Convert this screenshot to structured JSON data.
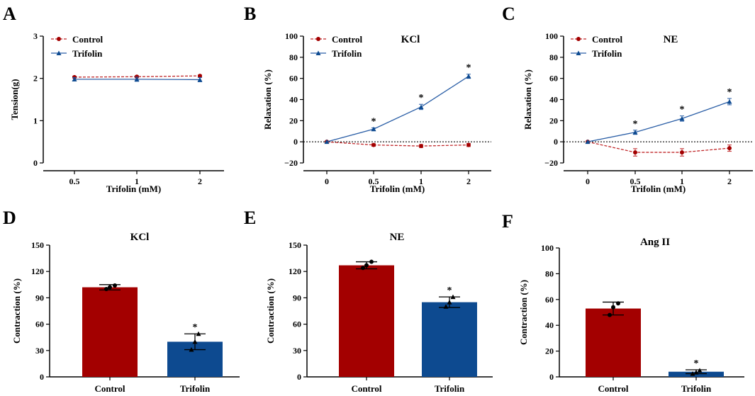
{
  "colors": {
    "control": "#a30000",
    "trifolin": "#0d4a90",
    "control_line": "#c0282a",
    "trifolin_line": "#2a5ea6"
  },
  "chart_data": [
    {
      "panel": "A",
      "type": "line",
      "title": "",
      "xlabel": "Trifolin (mM)",
      "ylabel": "Tension(g)",
      "categories": [
        "0.5",
        "1",
        "2"
      ],
      "ylim": [
        0,
        3
      ],
      "yticks": [
        "0",
        "1",
        "2",
        "3"
      ],
      "legend": [
        "Control",
        "Trifolin"
      ],
      "series": [
        {
          "name": "Control",
          "values": [
            2.03,
            2.04,
            2.06
          ],
          "errors": [
            0.02,
            0.02,
            0.02
          ],
          "stars": [
            "",
            "",
            ""
          ]
        },
        {
          "name": "Trifolin",
          "values": [
            1.98,
            1.98,
            1.97
          ],
          "errors": [
            0.04,
            0.05,
            0.05
          ],
          "stars": [
            "",
            "",
            ""
          ]
        }
      ],
      "zero_line": false
    },
    {
      "panel": "B",
      "type": "line",
      "title": "KCl",
      "xlabel": "Trifolin (mM)",
      "ylabel": "Relaxation (%)",
      "categories": [
        "0",
        "0.5",
        "1",
        "2"
      ],
      "ylim": [
        -20,
        100
      ],
      "yticks": [
        "−20",
        "0",
        "20",
        "40",
        "60",
        "80",
        "100"
      ],
      "legend": [
        "Control",
        "Trifolin"
      ],
      "series": [
        {
          "name": "Control",
          "values": [
            0,
            -3,
            -4,
            -3
          ],
          "errors": [
            0,
            1.2,
            1.5,
            1.5
          ],
          "stars": [
            "",
            "",
            "",
            ""
          ]
        },
        {
          "name": "Trifolin",
          "values": [
            0,
            12,
            33,
            62
          ],
          "errors": [
            0,
            1.2,
            2.5,
            2
          ],
          "stars": [
            "",
            "*",
            "*",
            "*"
          ]
        }
      ],
      "zero_line": true
    },
    {
      "panel": "C",
      "type": "line",
      "title": "NE",
      "xlabel": "Trifolin (mM)",
      "ylabel": "Relaxation (%)",
      "categories": [
        "0",
        "0.5",
        "1",
        "2"
      ],
      "ylim": [
        -20,
        100
      ],
      "yticks": [
        "−20",
        "0",
        "20",
        "40",
        "60",
        "80",
        "100"
      ],
      "legend": [
        "Control",
        "Trifolin"
      ],
      "series": [
        {
          "name": "Control",
          "values": [
            0,
            -10,
            -10,
            -6
          ],
          "errors": [
            0,
            3.5,
            3.5,
            3
          ],
          "stars": [
            "",
            "",
            "",
            ""
          ]
        },
        {
          "name": "Trifolin",
          "values": [
            0,
            9,
            22,
            38
          ],
          "errors": [
            0,
            2,
            2.5,
            3
          ],
          "stars": [
            "",
            "*",
            "*",
            "*"
          ]
        }
      ],
      "zero_line": true
    },
    {
      "panel": "D",
      "type": "bar",
      "title": "KCl",
      "xlabel": "",
      "ylabel": "Contraction (%)",
      "categories": [
        "Control",
        "Trifolin"
      ],
      "values": [
        102,
        40
      ],
      "errors": [
        3,
        9
      ],
      "points": [
        [
          100,
          102,
          104
        ],
        [
          31,
          40,
          49
        ]
      ],
      "stars": [
        "",
        "*"
      ],
      "ylim": [
        0,
        150
      ],
      "yticks": [
        "0",
        "30",
        "60",
        "90",
        "120",
        "150"
      ]
    },
    {
      "panel": "E",
      "type": "bar",
      "title": "NE",
      "xlabel": "",
      "ylabel": "Contraction (%)",
      "categories": [
        "Control",
        "Trifolin"
      ],
      "values": [
        127,
        85
      ],
      "errors": [
        4,
        6
      ],
      "points": [
        [
          124,
          127,
          131
        ],
        [
          80,
          85,
          91
        ]
      ],
      "stars": [
        "",
        "*"
      ],
      "ylim": [
        0,
        150
      ],
      "yticks": [
        "0",
        "30",
        "60",
        "90",
        "120",
        "150"
      ]
    },
    {
      "panel": "F",
      "type": "bar",
      "title": "Ang II",
      "xlabel": "",
      "ylabel": "Contraction (%)",
      "categories": [
        "Control",
        "Trifolin"
      ],
      "values": [
        53,
        4
      ],
      "errors": [
        5,
        1.5
      ],
      "points": [
        [
          48,
          54,
          57
        ],
        [
          2.5,
          3.5,
          5
        ]
      ],
      "stars": [
        "",
        "*"
      ],
      "ylim": [
        0,
        100
      ],
      "yticks": [
        "0",
        "20",
        "40",
        "60",
        "80",
        "100"
      ]
    }
  ]
}
